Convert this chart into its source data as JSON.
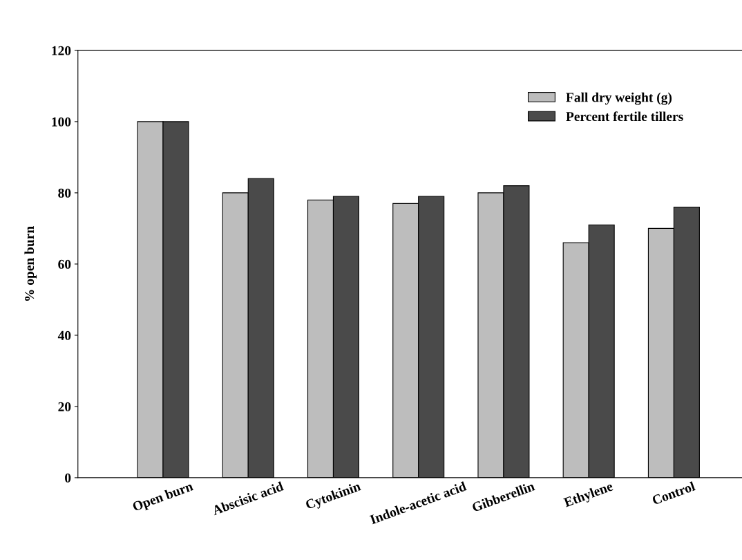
{
  "chart_data": {
    "type": "bar",
    "ylabel": "% open burn",
    "categories": [
      "Open burn",
      "Abscisic acid",
      "Cytokinin",
      "Indole-acetic acid",
      "Gibberellin",
      "Ethylene",
      "Control"
    ],
    "series": [
      {
        "name": "Fall dry weight (g)",
        "color": "#bdbdbd",
        "values": [
          100,
          80,
          78,
          77,
          80,
          66,
          70
        ]
      },
      {
        "name": "Percent fertile tillers",
        "color": "#4a4a4a",
        "values": [
          100,
          84,
          79,
          79,
          82,
          71,
          76
        ]
      }
    ],
    "ylim": [
      0,
      120
    ],
    "yticks": [
      0,
      20,
      40,
      60,
      80,
      100,
      120
    ],
    "grid": false,
    "legend": "top right"
  }
}
